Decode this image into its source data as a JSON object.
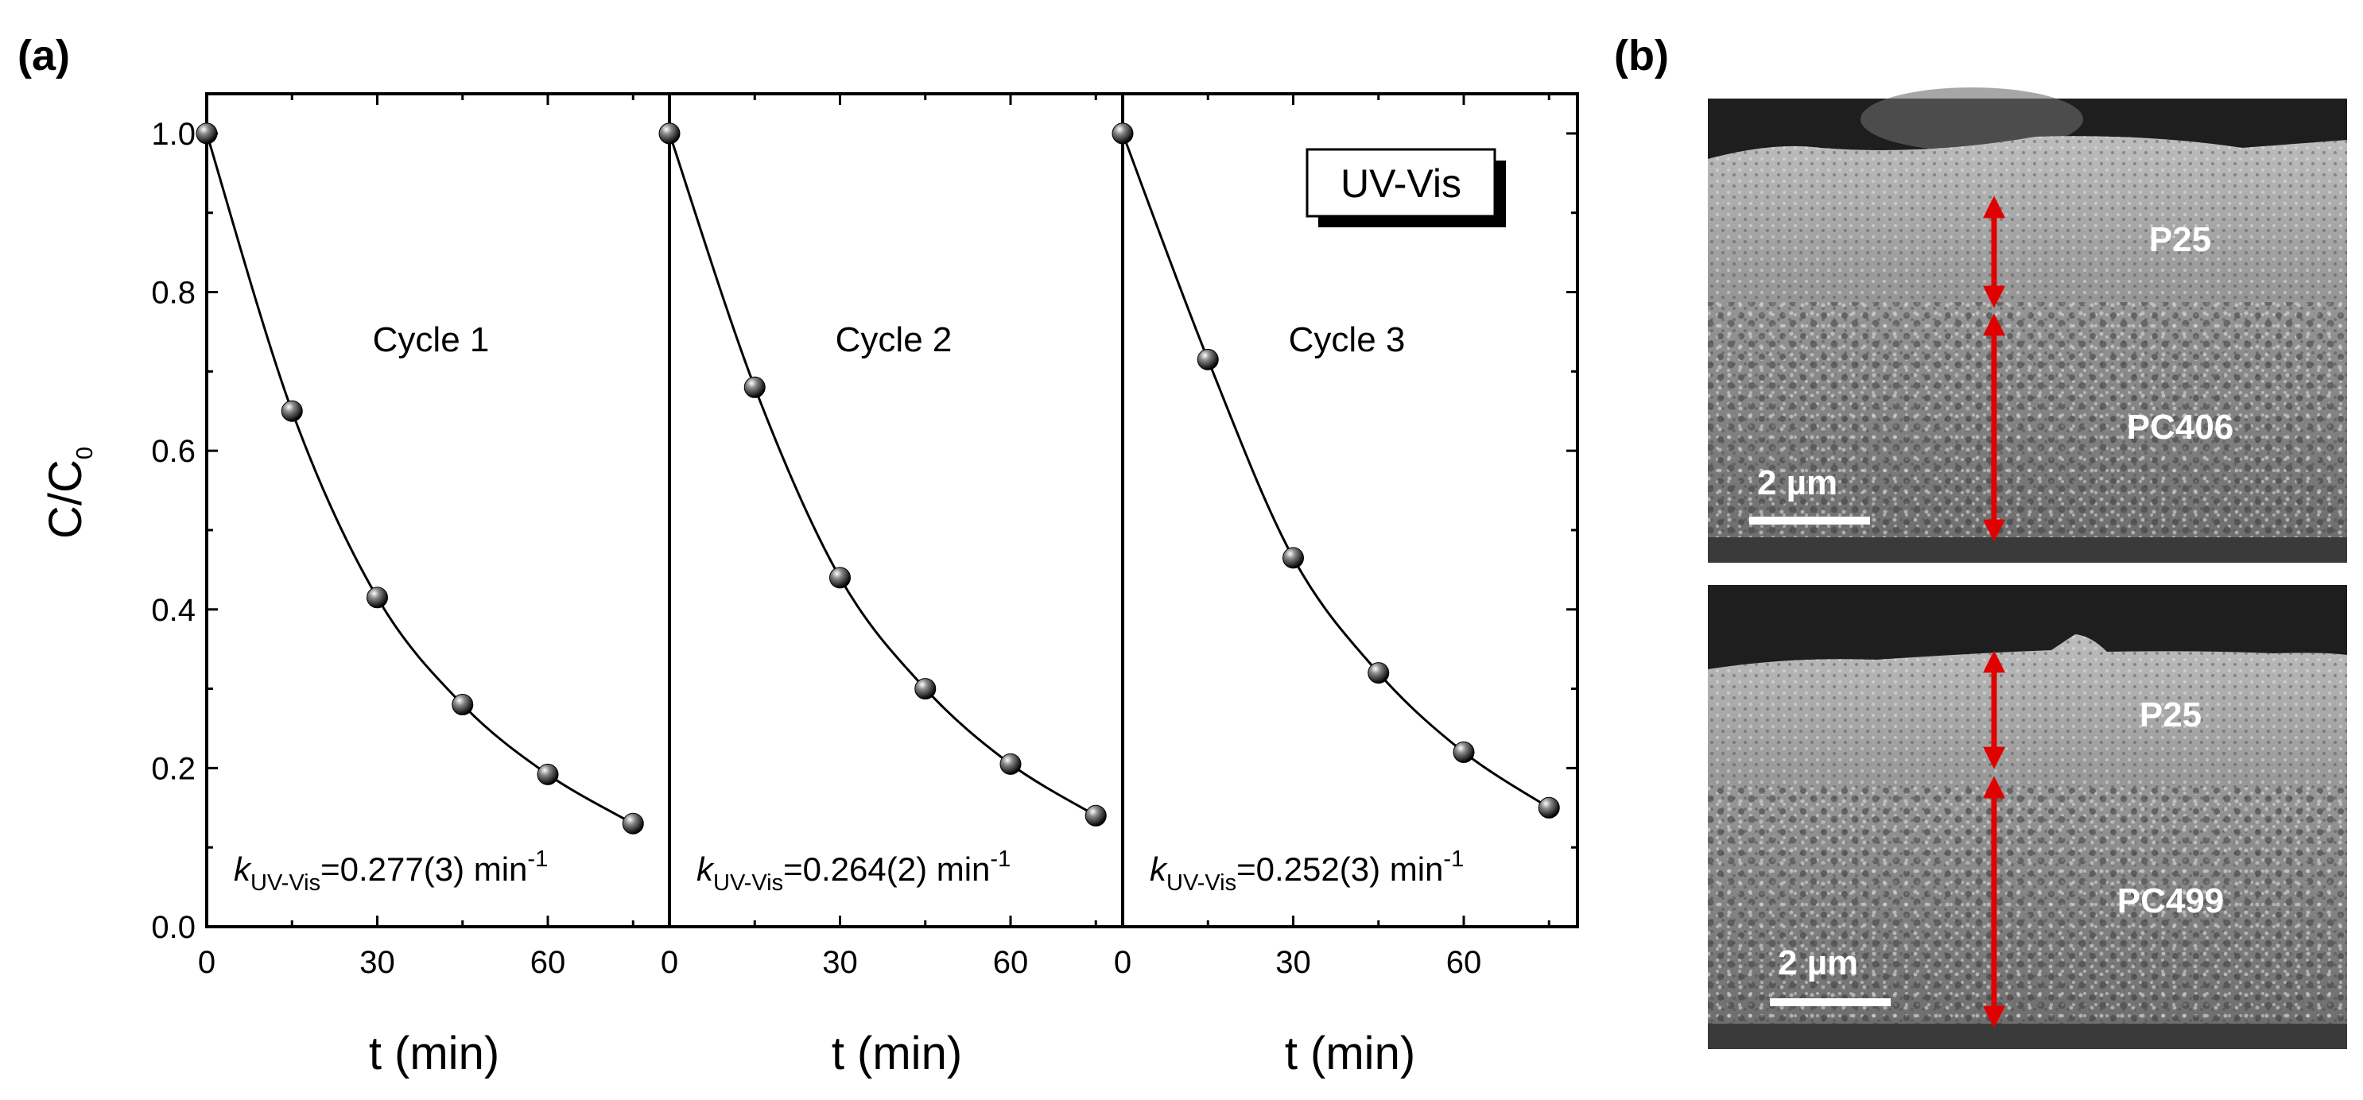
{
  "figure": {
    "panel_a_label": "(a)",
    "panel_b_label": "(b)",
    "legend_label": "UV-Vis"
  },
  "chart_data": {
    "type": "scatter",
    "ylabel_main": "C/C",
    "ylabel_sub": "0",
    "xlabel": "t (min)",
    "ylim": [
      0,
      1.05
    ],
    "xlim": [
      0,
      80
    ],
    "yticks": [
      "0.0",
      "0.2",
      "0.4",
      "0.6",
      "0.8",
      "1.0"
    ],
    "xticks": [
      "0",
      "30",
      "60"
    ],
    "series": [
      {
        "name": "Cycle 1",
        "x": [
          0,
          15,
          30,
          45,
          60,
          75
        ],
        "y": [
          1.0,
          0.65,
          0.415,
          0.28,
          0.192,
          0.13
        ],
        "k_prefix": "k",
        "k_subscript": "UV-Vis",
        "k_value": "=0.277(3) min",
        "k_exp": "-1"
      },
      {
        "name": "Cycle 2",
        "x": [
          0,
          15,
          30,
          45,
          60,
          75
        ],
        "y": [
          1.0,
          0.68,
          0.44,
          0.3,
          0.205,
          0.14
        ],
        "k_prefix": "k",
        "k_subscript": "UV-Vis",
        "k_value": "=0.264(2) min",
        "k_exp": "-1"
      },
      {
        "name": "Cycle 3",
        "x": [
          0,
          15,
          30,
          45,
          60,
          75
        ],
        "y": [
          1.0,
          0.715,
          0.465,
          0.32,
          0.22,
          0.15
        ],
        "k_prefix": "k",
        "k_subscript": "UV-Vis",
        "k_value": "=0.252(3) min",
        "k_exp": "-1"
      }
    ],
    "grid": false
  },
  "sem_images": [
    {
      "top_layer": "P25",
      "bottom_layer": "PC406",
      "scale": "2 µm"
    },
    {
      "top_layer": "P25",
      "bottom_layer": "PC499",
      "scale": "2 µm"
    }
  ],
  "colors": {
    "arrow": "#e00000",
    "sem_dark": "#2a2a2a",
    "sem_film": "#8a8a8a"
  }
}
